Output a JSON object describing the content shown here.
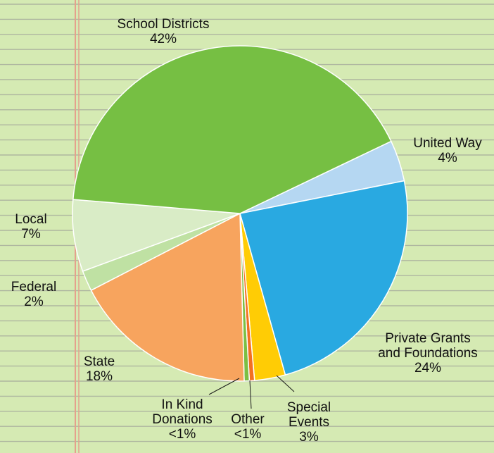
{
  "chart_data": {
    "type": "pie",
    "title": "",
    "slices": [
      {
        "label": [
          "United Way",
          "4%"
        ],
        "value": 4,
        "color": "#b5d7f2"
      },
      {
        "label": [
          "Private Grants",
          "and Foundations",
          "24%"
        ],
        "value": 24,
        "color": "#29a9e1"
      },
      {
        "label": [
          "Special",
          "Events",
          "3%"
        ],
        "value": 3,
        "color": "#ffcc05"
      },
      {
        "label": [
          "Other",
          "<1%"
        ],
        "value": 0.5,
        "color": "#f37021"
      },
      {
        "label": [
          "In Kind",
          "Donations",
          "<1%"
        ],
        "value": 0.5,
        "color": "#7cbf43"
      },
      {
        "label": [
          "State",
          "18%"
        ],
        "value": 18,
        "color": "#f7a45e"
      },
      {
        "label": [
          "Federal",
          "2%"
        ],
        "value": 2,
        "color": "#bfe1a3"
      },
      {
        "label": [
          "Local",
          "7%"
        ],
        "value": 7,
        "color": "#d9ecc6"
      },
      {
        "label": [
          "School Districts",
          "42%"
        ],
        "value": 42,
        "color": "#76bf43"
      }
    ]
  }
}
